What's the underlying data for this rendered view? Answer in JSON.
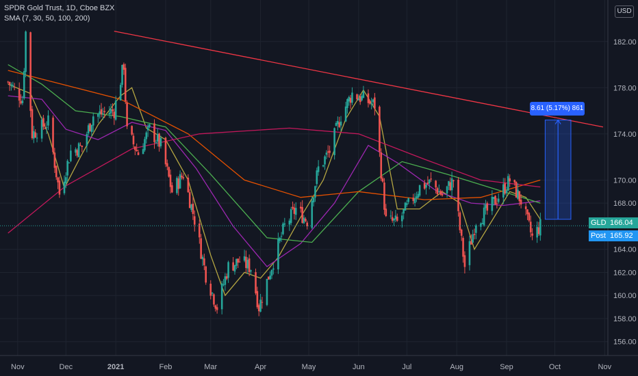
{
  "legend": {
    "symbol_line": "SPDR Gold Trust, 1D, Cboe BZX",
    "indicator_line": "SMA (7, 30, 50, 100, 200)"
  },
  "currency_button": "USD",
  "tags": {
    "symbol": "GLD",
    "price": "166.04",
    "post_label": "Post",
    "post_price": "165.92"
  },
  "measure_label": "8.61 (5.17%) 861",
  "chart_data": {
    "type": "line",
    "title": "SPDR Gold Trust, 1D, Cboe BZX",
    "ylim": [
      154.8,
      185.6
    ],
    "y_ticks": [
      182,
      178,
      174,
      170,
      168,
      164,
      162,
      160,
      158,
      156
    ],
    "y_tick_labels": [
      "182.00",
      "178.00",
      "174.00",
      "170.00",
      "168.00",
      "164.00",
      "162.00",
      "160.00",
      "158.00",
      "156.00"
    ],
    "x_ticks": [
      "Nov",
      "Dec",
      "2021",
      "Feb",
      "Mar",
      "Apr",
      "May",
      "Jun",
      "Jul",
      "Aug",
      "Sep",
      "Oct",
      "Nov"
    ],
    "current_price": 166.04,
    "post_price": 165.92,
    "colors": {
      "up": "#26a69a",
      "down": "#ef5350",
      "sma7": "#b5a642",
      "sma30": "#9c27b0",
      "sma50": "#4caf50",
      "sma100": "#e65100",
      "sma200": "#c2185b",
      "trendline": "#f23645",
      "measure": "#2962ff"
    },
    "trendline": {
      "start": [
        "2020-12-31",
        182.9
      ],
      "end": [
        "2021-10-31",
        174.6
      ]
    },
    "measure": {
      "from": 166.6,
      "to": 175.2,
      "change": 8.61,
      "percent": 5.17
    },
    "price_path": [
      [
        "2020-10-26",
        178.5
      ],
      [
        "2020-11-04",
        177.0
      ],
      [
        "2020-11-06",
        182.8
      ],
      [
        "2020-11-10",
        174.0
      ],
      [
        "2020-11-20",
        175.0
      ],
      [
        "2020-11-27",
        168.8
      ],
      [
        "2020-12-04",
        172.5
      ],
      [
        "2020-12-11",
        172.9
      ],
      [
        "2020-12-18",
        175.6
      ],
      [
        "2020-12-31",
        176.0
      ],
      [
        "2021-01-06",
        180.0
      ],
      [
        "2021-01-08",
        174.2
      ],
      [
        "2021-01-15",
        172.3
      ],
      [
        "2021-01-22",
        174.4
      ],
      [
        "2021-01-29",
        173.0
      ],
      [
        "2021-02-05",
        169.0
      ],
      [
        "2021-02-12",
        170.5
      ],
      [
        "2021-02-19",
        166.6
      ],
      [
        "2021-02-26",
        161.8
      ],
      [
        "2021-03-05",
        159.0
      ],
      [
        "2021-03-12",
        162.5
      ],
      [
        "2021-03-19",
        163.0
      ],
      [
        "2021-03-26",
        162.4
      ],
      [
        "2021-03-31",
        159.0
      ],
      [
        "2021-04-09",
        163.0
      ],
      [
        "2021-04-16",
        166.0
      ],
      [
        "2021-04-23",
        167.5
      ],
      [
        "2021-04-30",
        166.5
      ],
      [
        "2021-05-07",
        171.0
      ],
      [
        "2021-05-14",
        172.5
      ],
      [
        "2021-05-21",
        175.6
      ],
      [
        "2021-05-28",
        177.5
      ],
      [
        "2021-06-04",
        177.0
      ],
      [
        "2021-06-11",
        176.5
      ],
      [
        "2021-06-18",
        166.5
      ],
      [
        "2021-06-25",
        166.3
      ],
      [
        "2021-07-02",
        167.8
      ],
      [
        "2021-07-09",
        169.4
      ],
      [
        "2021-07-16",
        169.8
      ],
      [
        "2021-07-23",
        168.7
      ],
      [
        "2021-07-30",
        170.0
      ],
      [
        "2021-08-06",
        162.5
      ],
      [
        "2021-08-13",
        166.5
      ],
      [
        "2021-08-20",
        167.3
      ],
      [
        "2021-08-27",
        168.6
      ],
      [
        "2021-09-03",
        170.0
      ],
      [
        "2021-09-10",
        168.2
      ],
      [
        "2021-09-17",
        165.0
      ],
      [
        "2021-09-22",
        166.04
      ]
    ],
    "series": [
      {
        "name": "SMA 7",
        "points": [
          [
            "2020-10-26",
            178.3
          ],
          [
            "2020-11-09",
            177.5
          ],
          [
            "2020-11-20",
            174.0
          ],
          [
            "2020-11-30",
            169.3
          ],
          [
            "2020-12-10",
            172.0
          ],
          [
            "2020-12-21",
            174.8
          ],
          [
            "2021-01-04",
            177.3
          ],
          [
            "2021-01-11",
            178.0
          ],
          [
            "2021-01-20",
            174.5
          ],
          [
            "2021-02-01",
            173.5
          ],
          [
            "2021-02-15",
            170.0
          ],
          [
            "2021-03-01",
            163.5
          ],
          [
            "2021-03-10",
            160.0
          ],
          [
            "2021-03-22",
            162.0
          ],
          [
            "2021-04-01",
            161.5
          ],
          [
            "2021-04-12",
            163.3
          ],
          [
            "2021-04-26",
            166.8
          ],
          [
            "2021-05-10",
            170.0
          ],
          [
            "2021-05-24",
            175.3
          ],
          [
            "2021-06-04",
            177.8
          ],
          [
            "2021-06-14",
            175.5
          ],
          [
            "2021-06-25",
            167.5
          ],
          [
            "2021-07-09",
            167.5
          ],
          [
            "2021-07-23",
            169.0
          ],
          [
            "2021-08-03",
            168.0
          ],
          [
            "2021-08-12",
            164.0
          ],
          [
            "2021-08-23",
            166.5
          ],
          [
            "2021-09-03",
            169.0
          ],
          [
            "2021-09-13",
            168.5
          ],
          [
            "2021-09-22",
            166.6
          ]
        ]
      },
      {
        "name": "SMA 30",
        "points": [
          [
            "2020-10-26",
            177.3
          ],
          [
            "2020-11-16",
            177.0
          ],
          [
            "2020-12-01",
            174.4
          ],
          [
            "2020-12-21",
            173.5
          ],
          [
            "2021-01-11",
            175.0
          ],
          [
            "2021-02-01",
            174.3
          ],
          [
            "2021-02-20",
            171.0
          ],
          [
            "2021-03-15",
            166.0
          ],
          [
            "2021-04-05",
            162.5
          ],
          [
            "2021-04-26",
            164.5
          ],
          [
            "2021-05-17",
            168.0
          ],
          [
            "2021-06-07",
            173.0
          ],
          [
            "2021-06-25",
            171.5
          ],
          [
            "2021-07-20",
            169.0
          ],
          [
            "2021-08-10",
            168.0
          ],
          [
            "2021-08-30",
            167.8
          ],
          [
            "2021-09-22",
            168.2
          ]
        ]
      },
      {
        "name": "SMA 50",
        "points": [
          [
            "2020-10-26",
            180.0
          ],
          [
            "2020-11-16",
            178.3
          ],
          [
            "2020-12-07",
            176.0
          ],
          [
            "2021-01-04",
            175.5
          ],
          [
            "2021-02-01",
            174.6
          ],
          [
            "2021-03-01",
            170.5
          ],
          [
            "2021-04-05",
            165.0
          ],
          [
            "2021-05-03",
            164.6
          ],
          [
            "2021-06-01",
            169.0
          ],
          [
            "2021-06-28",
            171.6
          ],
          [
            "2021-07-26",
            170.5
          ],
          [
            "2021-08-23",
            169.3
          ],
          [
            "2021-09-22",
            168.0
          ]
        ]
      },
      {
        "name": "SMA 100",
        "points": [
          [
            "2020-10-26",
            179.5
          ],
          [
            "2021-01-04",
            177.0
          ],
          [
            "2021-02-15",
            174.0
          ],
          [
            "2021-03-22",
            170.0
          ],
          [
            "2021-04-26",
            168.5
          ],
          [
            "2021-06-01",
            169.0
          ],
          [
            "2021-07-12",
            168.3
          ],
          [
            "2021-08-16",
            168.5
          ],
          [
            "2021-09-22",
            170.0
          ]
        ]
      },
      {
        "name": "SMA 200",
        "points": [
          [
            "2020-10-26",
            165.4
          ],
          [
            "2020-12-01",
            169.5
          ],
          [
            "2021-01-11",
            172.7
          ],
          [
            "2021-02-22",
            174.0
          ],
          [
            "2021-04-19",
            174.5
          ],
          [
            "2021-06-01",
            174.0
          ],
          [
            "2021-07-12",
            171.8
          ],
          [
            "2021-08-16",
            170.0
          ],
          [
            "2021-09-22",
            169.4
          ]
        ]
      }
    ]
  }
}
